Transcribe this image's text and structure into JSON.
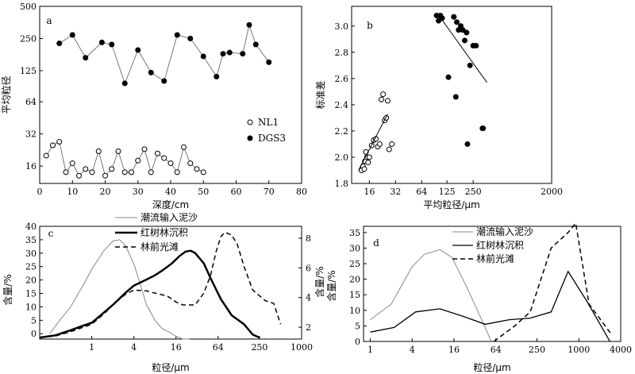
{
  "chart_data": [
    {
      "panel": "a",
      "type": "line",
      "xlabel": "深度/cm",
      "ylabel": "平均粒径",
      "x_ticks": [
        0,
        10,
        20,
        30,
        40,
        50,
        60,
        70,
        80
      ],
      "y_ticks": [
        16,
        32,
        64,
        125,
        250,
        500
      ],
      "y_scale": "log2",
      "xlim": [
        0,
        80
      ],
      "ylim": [
        11,
        500
      ],
      "series": [
        {
          "name": "NL1",
          "marker": "open-circle",
          "color": "#000000",
          "x": [
            2,
            4,
            6,
            8,
            10,
            12,
            14,
            16,
            18,
            20,
            22,
            24,
            26,
            28,
            30,
            32,
            34,
            36,
            38,
            40,
            42,
            44,
            46,
            48,
            50
          ],
          "y": [
            20,
            25,
            27,
            14,
            17,
            13,
            15,
            14,
            22,
            13,
            15,
            22,
            14,
            14,
            18,
            23,
            14,
            21,
            19,
            17,
            14,
            24,
            17,
            15,
            14
          ]
        },
        {
          "name": "DGS3",
          "marker": "filled-circle",
          "color": "#000000",
          "x": [
            6,
            10,
            14,
            19,
            22,
            26,
            30,
            34,
            38,
            42,
            46,
            50,
            54,
            56,
            58,
            62,
            64,
            66,
            70
          ],
          "y": [
            225,
            270,
            165,
            230,
            220,
            95,
            195,
            120,
            100,
            270,
            250,
            170,
            110,
            180,
            185,
            180,
            335,
            220,
            150
          ]
        }
      ],
      "legend": "right"
    },
    {
      "panel": "b",
      "type": "scatter",
      "xlabel": "平均粒径/μm",
      "ylabel": "标准差",
      "x_ticks": [
        16,
        32,
        64,
        125,
        250,
        2000
      ],
      "x_scale": "log2",
      "y_ticks": [
        1.8,
        2.0,
        2.2,
        2.4,
        2.6,
        2.8,
        3.0
      ],
      "xlim": [
        10,
        2000
      ],
      "ylim": [
        1.8,
        3.15
      ],
      "series": [
        {
          "name": "NL1",
          "marker": "open-circle",
          "x": [
            13,
            13.5,
            14,
            14.2,
            14.6,
            15,
            15.5,
            16,
            17,
            18,
            19,
            20,
            21,
            22,
            23,
            24,
            25,
            26,
            27,
            29
          ],
          "y": [
            1.9,
            1.93,
            1.91,
            1.97,
            2.04,
            2.0,
            1.96,
            2.0,
            2.09,
            2.13,
            2.14,
            2.08,
            2.1,
            2.44,
            2.48,
            2.28,
            2.3,
            2.43,
            2.06,
            2.1
          ]
        },
        {
          "name": "DGS3",
          "marker": "filled-circle",
          "x": [
            95,
            100,
            105,
            110,
            130,
            150,
            158,
            162,
            170,
            180,
            190,
            200,
            210,
            215,
            230,
            250,
            270,
            320,
            325
          ],
          "y": [
            3.08,
            3.04,
            3.08,
            3.06,
            2.61,
            3.07,
            2.46,
            3.03,
            2.97,
            3.0,
            2.97,
            2.89,
            2.95,
            2.1,
            2.7,
            2.85,
            2.85,
            2.22,
            2.22
          ]
        }
      ],
      "trendlines": [
        {
          "series": "NL1",
          "x": [
            12,
            26
          ],
          "y": [
            1.9,
            2.33
          ]
        },
        {
          "series": "DGS3",
          "x": [
            96,
            360
          ],
          "y": [
            3.1,
            2.57
          ]
        }
      ]
    },
    {
      "panel": "c",
      "type": "line",
      "xlabel": "粒径/μm",
      "ylabel_left": "含量/%",
      "ylabel_right": "含量/%",
      "x_scale": "log2",
      "x_ticks": [
        1,
        4,
        16,
        64,
        250,
        1000
      ],
      "y_ticks_left": [
        0,
        5,
        10,
        15,
        20,
        25,
        30,
        35,
        40
      ],
      "y_ticks_right": [
        2,
        4,
        6,
        8
      ],
      "xlim": [
        0.18,
        1000
      ],
      "ylim_left": [
        -2,
        40
      ],
      "ylim_right": [
        1.2,
        8.8
      ],
      "series": [
        {
          "name": "潮流输入泥沙",
          "axis": "left",
          "color": "#888888",
          "style": "solid-thin",
          "x": [
            0.25,
            0.35,
            0.5,
            0.75,
            1,
            1.5,
            2,
            2.5,
            3,
            4,
            5,
            6,
            8,
            10,
            13,
            16,
            20,
            25
          ],
          "y": [
            0,
            5,
            10,
            18,
            24,
            31,
            34.5,
            35,
            33,
            26,
            18,
            11,
            5,
            2,
            0.5,
            -1,
            -2,
            -2
          ]
        },
        {
          "name": "红树林沉积",
          "axis": "right",
          "color": "#000000",
          "style": "solid-thick",
          "x": [
            0.18,
            0.3,
            0.5,
            0.75,
            1,
            1.5,
            2,
            3,
            4,
            6,
            8,
            10,
            14,
            18,
            22,
            26,
            30,
            40,
            50,
            70,
            100,
            150,
            200,
            250
          ],
          "y": [
            1.3,
            1.45,
            1.8,
            2.1,
            2.3,
            3.0,
            3.5,
            4.3,
            4.8,
            5.2,
            5.5,
            5.8,
            6.3,
            6.8,
            7.1,
            7.15,
            7.0,
            6.3,
            5.3,
            3.9,
            2.8,
            2.2,
            1.5,
            1.3
          ]
        },
        {
          "name": "林前光滩",
          "axis": "right",
          "color": "#000000",
          "style": "dashed",
          "x": [
            0.18,
            0.3,
            0.5,
            1,
            1.5,
            2,
            3,
            4,
            6,
            8,
            12,
            16,
            20,
            30,
            40,
            50,
            60,
            70,
            80,
            100,
            120,
            150,
            200,
            300,
            400,
            500
          ],
          "y": [
            1.3,
            1.4,
            1.7,
            2.2,
            2.9,
            3.5,
            4.2,
            4.5,
            4.45,
            4.3,
            4.1,
            3.7,
            3.5,
            3.5,
            4.3,
            5.5,
            7.1,
            8.1,
            8.4,
            8.2,
            7.6,
            6.1,
            4.5,
            3.8,
            3.6,
            2.2
          ]
        }
      ],
      "legend": "top"
    },
    {
      "panel": "d",
      "type": "line",
      "xlabel": "粒径/μm",
      "ylabel": "含量/%",
      "x_scale": "log2",
      "x_ticks": [
        1,
        4,
        16,
        64,
        250,
        1000,
        4000
      ],
      "y_ticks": [
        0,
        5,
        10,
        15,
        20,
        25,
        30,
        35
      ],
      "xlim": [
        0.8,
        4000
      ],
      "ylim": [
        0,
        37
      ],
      "series": [
        {
          "name": "潮流输入泥沙",
          "color": "#888888",
          "style": "solid-thin",
          "x": [
            1,
            2,
            4,
            6,
            10,
            15,
            25,
            40,
            55
          ],
          "y": [
            7,
            12,
            24,
            28,
            29.5,
            27,
            17,
            7,
            0
          ]
        },
        {
          "name": "红树林沉积",
          "color": "#000000",
          "style": "solid",
          "x": [
            1,
            2.2,
            4.5,
            10,
            22,
            45,
            100,
            200,
            400,
            700,
            1300,
            2800
          ],
          "y": [
            3,
            4.5,
            9.5,
            10.5,
            8,
            5.5,
            7,
            7.5,
            9.5,
            22.5,
            13,
            0
          ]
        },
        {
          "name": "林前光滩",
          "color": "#000000",
          "style": "dashed",
          "x": [
            60,
            120,
            200,
            400,
            700,
            900,
            1400,
            3000
          ],
          "y": [
            0,
            5,
            9.5,
            30,
            35,
            38,
            12,
            2
          ]
        }
      ],
      "legend": "top-right"
    }
  ]
}
